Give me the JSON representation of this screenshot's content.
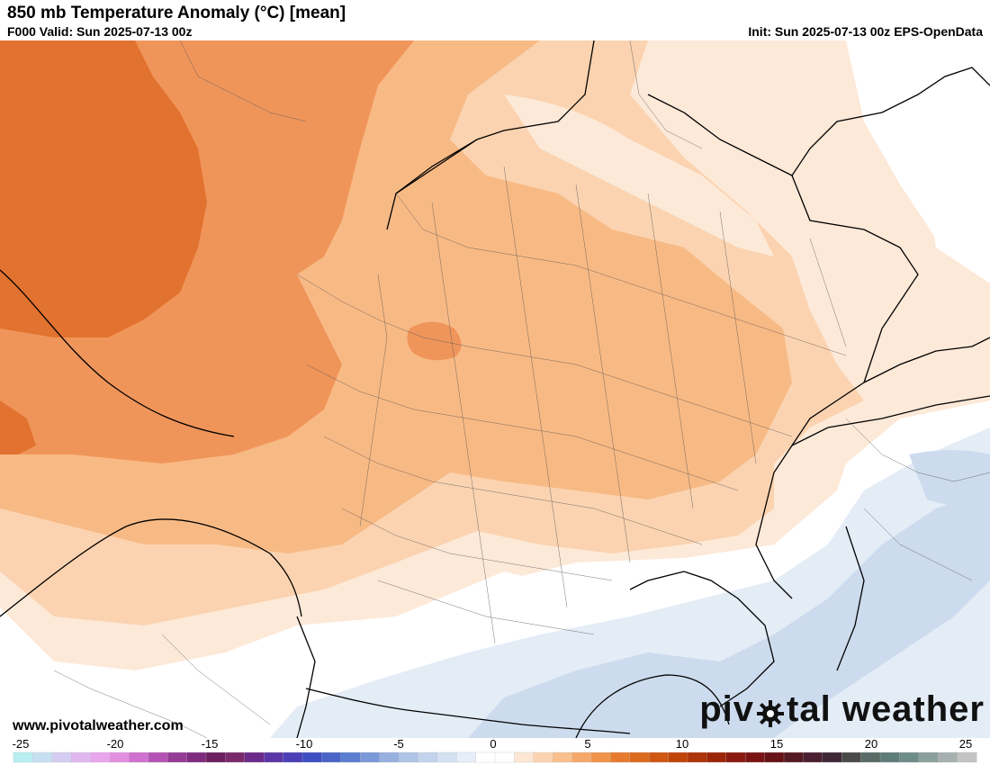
{
  "header": {
    "title": "850 mb Temperature Anomaly (°C) [mean]",
    "valid": "F000 Valid: Sun 2025-07-13 00z",
    "init": "Init: Sun 2025-07-13 00z EPS-OpenData"
  },
  "footer": {
    "url": "www.pivotalweather.com",
    "brand_left": "piv",
    "brand_right": "tal weather",
    "brand_icon": "gear-icon"
  },
  "colorbar": {
    "ticks": [
      "-25",
      "-20",
      "-15",
      "-10",
      "-5",
      "0",
      "5",
      "10",
      "15",
      "20",
      "25"
    ],
    "min": -25,
    "max": 25,
    "step": 1,
    "colors": [
      "#b8eef2",
      "#c6e0f2",
      "#d4cdf1",
      "#e0b8ef",
      "#e9a6ec",
      "#e28fe0",
      "#cf72cf",
      "#b453b4",
      "#953c95",
      "#7e2c7e",
      "#6a1f5e",
      "#7a2a6a",
      "#6c2a8a",
      "#5b36a6",
      "#4a3fb6",
      "#3f4ec2",
      "#4a64c8",
      "#5a7ed0",
      "#7b98d8",
      "#97b0e0",
      "#aec3e6",
      "#c2d3ec",
      "#d4e1f2",
      "#e6eef8",
      "#ffffff",
      "#ffffff",
      "#fde7d4",
      "#fbd3b0",
      "#f9bf8c",
      "#f5a86a",
      "#ef934c",
      "#e67a2e",
      "#dc6a1e",
      "#cf5712",
      "#c0440a",
      "#ad3308",
      "#9b2508",
      "#8a1a10",
      "#7a1414",
      "#661216",
      "#551a22",
      "#4b2030",
      "#3f2838",
      "#4a4a4a",
      "#5a6a66",
      "#5e7c78",
      "#6e8c88",
      "#8aa09c",
      "#a6b0ae",
      "#c4c4c4"
    ]
  },
  "map_colors": {
    "anom_0_1": "#fde9d8",
    "anom_1_2": "#fbd3b0",
    "anom_2_3": "#f8ba85",
    "anom_3_4": "#f0955a",
    "anom_4_5": "#e2722f",
    "neg_0_1": "#e4ecf6",
    "neg_1_2": "#cddbee"
  }
}
